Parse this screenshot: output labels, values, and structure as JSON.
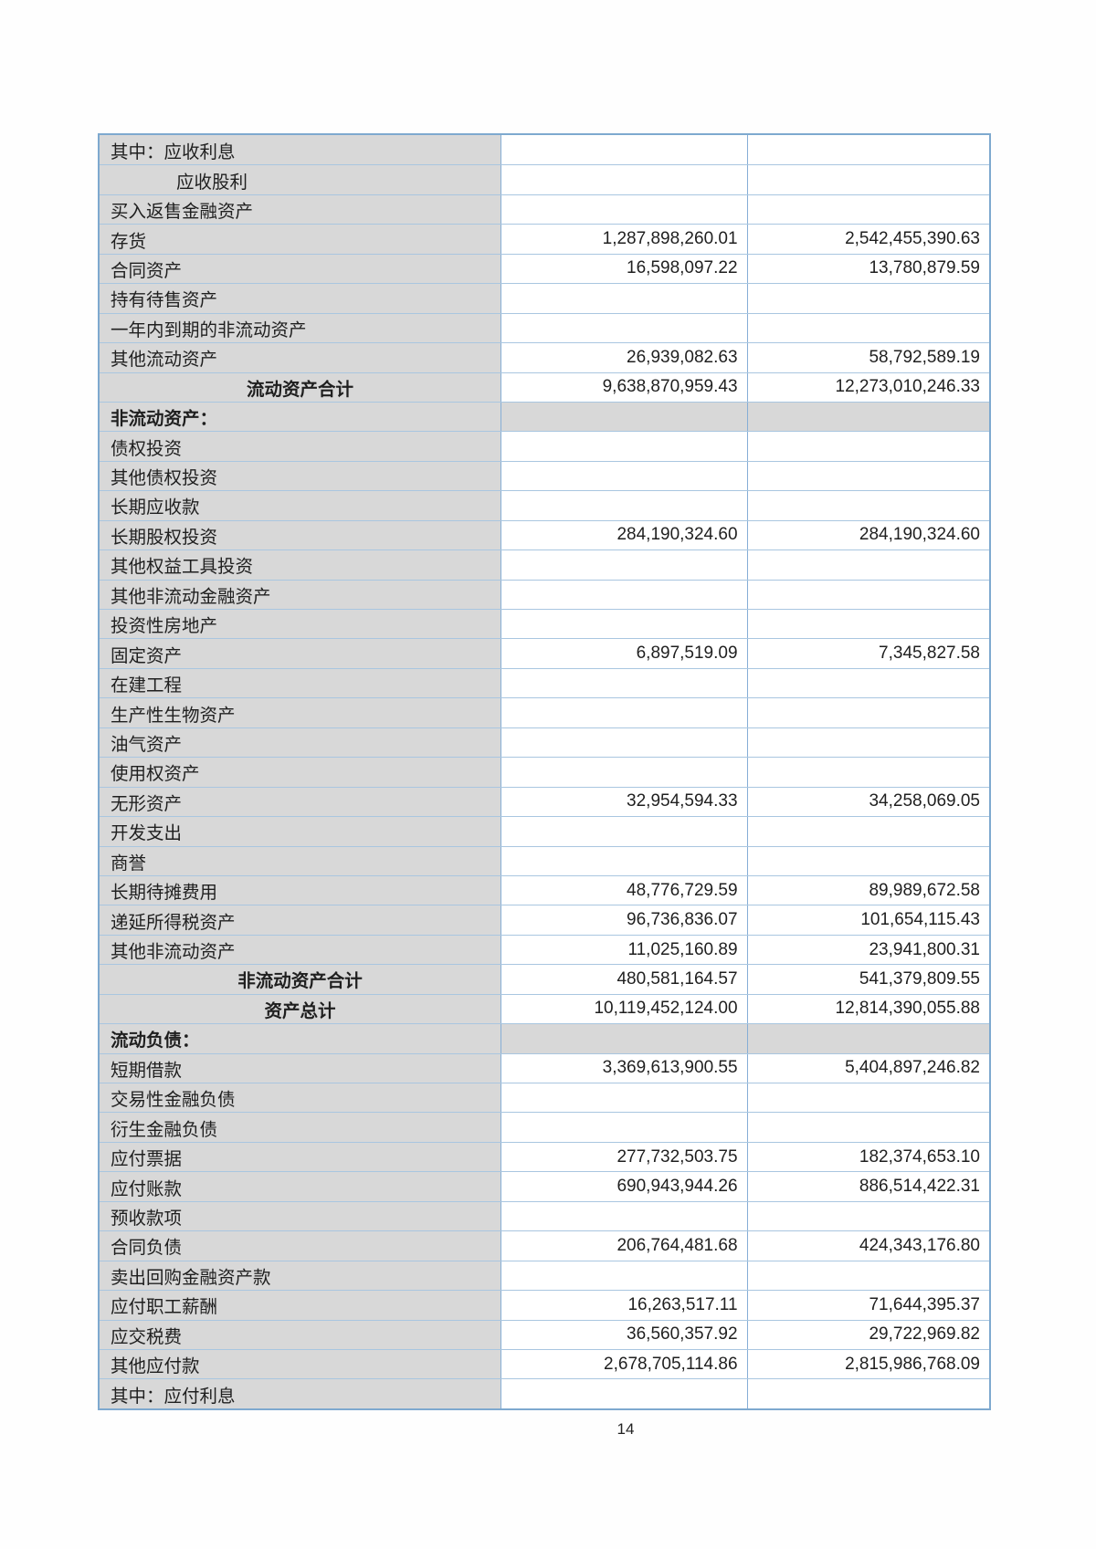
{
  "page": {
    "number": "14"
  },
  "colors": {
    "cell_gray": "#d8d8d8",
    "border_outer": "#7ea9cf",
    "border_horizontal": "#a9c6e0",
    "border_vertical": "#86aed6"
  },
  "table": {
    "rows": [
      {
        "type": "item",
        "label": "其中：应收利息",
        "v1": "",
        "v2": ""
      },
      {
        "type": "indent",
        "label": "应收股利",
        "v1": "",
        "v2": ""
      },
      {
        "type": "item",
        "label": "买入返售金融资产",
        "v1": "",
        "v2": ""
      },
      {
        "type": "item",
        "label": "存货",
        "v1": "1,287,898,260.01",
        "v2": "2,542,455,390.63"
      },
      {
        "type": "item",
        "label": "合同资产",
        "v1": "16,598,097.22",
        "v2": "13,780,879.59"
      },
      {
        "type": "item",
        "label": "持有待售资产",
        "v1": "",
        "v2": ""
      },
      {
        "type": "item",
        "label": "一年内到期的非流动资产",
        "v1": "",
        "v2": ""
      },
      {
        "type": "item",
        "label": "其他流动资产",
        "v1": "26,939,082.63",
        "v2": "58,792,589.19"
      },
      {
        "type": "subtotal",
        "label": "流动资产合计",
        "v1": "9,638,870,959.43",
        "v2": "12,273,010,246.33"
      },
      {
        "type": "section",
        "label": "非流动资产：",
        "v1": "",
        "v2": ""
      },
      {
        "type": "item",
        "label": "债权投资",
        "v1": "",
        "v2": ""
      },
      {
        "type": "item",
        "label": "其他债权投资",
        "v1": "",
        "v2": ""
      },
      {
        "type": "item",
        "label": "长期应收款",
        "v1": "",
        "v2": ""
      },
      {
        "type": "item",
        "label": "长期股权投资",
        "v1": "284,190,324.60",
        "v2": "284,190,324.60"
      },
      {
        "type": "item",
        "label": "其他权益工具投资",
        "v1": "",
        "v2": ""
      },
      {
        "type": "item",
        "label": "其他非流动金融资产",
        "v1": "",
        "v2": ""
      },
      {
        "type": "item",
        "label": "投资性房地产",
        "v1": "",
        "v2": ""
      },
      {
        "type": "item",
        "label": "固定资产",
        "v1": "6,897,519.09",
        "v2": "7,345,827.58"
      },
      {
        "type": "item",
        "label": "在建工程",
        "v1": "",
        "v2": ""
      },
      {
        "type": "item",
        "label": "生产性生物资产",
        "v1": "",
        "v2": ""
      },
      {
        "type": "item",
        "label": "油气资产",
        "v1": "",
        "v2": ""
      },
      {
        "type": "item",
        "label": "使用权资产",
        "v1": "",
        "v2": ""
      },
      {
        "type": "item",
        "label": "无形资产",
        "v1": "32,954,594.33",
        "v2": "34,258,069.05"
      },
      {
        "type": "item",
        "label": "开发支出",
        "v1": "",
        "v2": ""
      },
      {
        "type": "item",
        "label": "商誉",
        "v1": "",
        "v2": ""
      },
      {
        "type": "item",
        "label": "长期待摊费用",
        "v1": "48,776,729.59",
        "v2": "89,989,672.58"
      },
      {
        "type": "item",
        "label": "递延所得税资产",
        "v1": "96,736,836.07",
        "v2": "101,654,115.43"
      },
      {
        "type": "item",
        "label": "其他非流动资产",
        "v1": "11,025,160.89",
        "v2": "23,941,800.31"
      },
      {
        "type": "subtotal",
        "label": "非流动资产合计",
        "v1": "480,581,164.57",
        "v2": "541,379,809.55"
      },
      {
        "type": "subtotal",
        "label": "资产总计",
        "v1": "10,119,452,124.00",
        "v2": "12,814,390,055.88"
      },
      {
        "type": "section",
        "label": "流动负债：",
        "v1": "",
        "v2": ""
      },
      {
        "type": "item",
        "label": "短期借款",
        "v1": "3,369,613,900.55",
        "v2": "5,404,897,246.82"
      },
      {
        "type": "item",
        "label": "交易性金融负债",
        "v1": "",
        "v2": ""
      },
      {
        "type": "item",
        "label": "衍生金融负债",
        "v1": "",
        "v2": ""
      },
      {
        "type": "item",
        "label": "应付票据",
        "v1": "277,732,503.75",
        "v2": "182,374,653.10"
      },
      {
        "type": "item",
        "label": "应付账款",
        "v1": "690,943,944.26",
        "v2": "886,514,422.31"
      },
      {
        "type": "item",
        "label": "预收款项",
        "v1": "",
        "v2": ""
      },
      {
        "type": "item",
        "label": "合同负债",
        "v1": "206,764,481.68",
        "v2": "424,343,176.80"
      },
      {
        "type": "item",
        "label": "卖出回购金融资产款",
        "v1": "",
        "v2": ""
      },
      {
        "type": "item",
        "label": "应付职工薪酬",
        "v1": "16,263,517.11",
        "v2": "71,644,395.37"
      },
      {
        "type": "item",
        "label": "应交税费",
        "v1": "36,560,357.92",
        "v2": "29,722,969.82"
      },
      {
        "type": "item",
        "label": "其他应付款",
        "v1": "2,678,705,114.86",
        "v2": "2,815,986,768.09"
      },
      {
        "type": "item",
        "label": "其中：应付利息",
        "v1": "",
        "v2": ""
      }
    ]
  }
}
